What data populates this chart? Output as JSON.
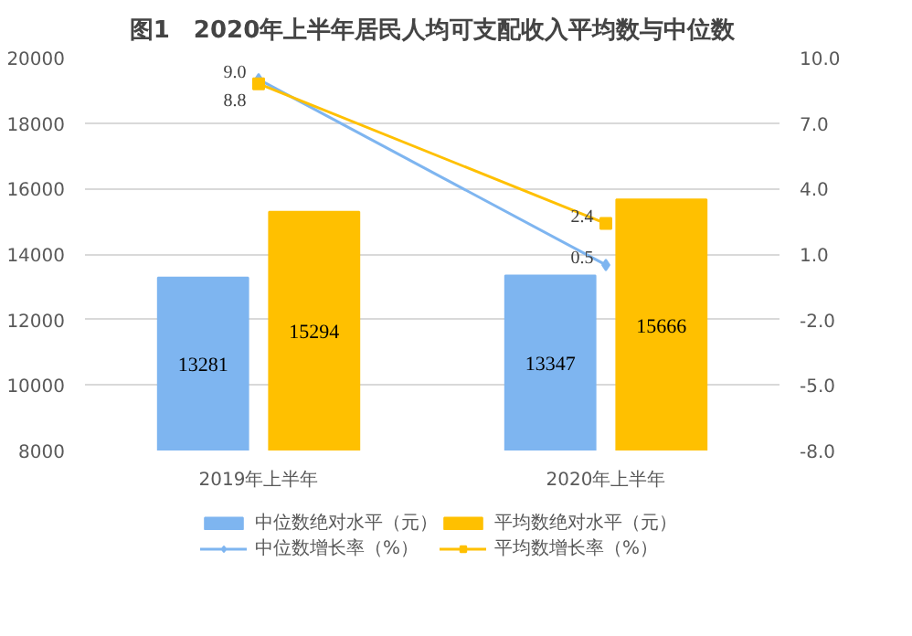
{
  "chart_data": {
    "type": "bar",
    "title": "图1　2020年上半年居民人均可支配收入平均数与中位数",
    "categories": [
      "2019年上半年",
      "2020年上半年"
    ],
    "series": [
      {
        "name": "中位数绝对水平（元）",
        "color": "#7eb5f0",
        "values": [
          13281,
          13347
        ]
      },
      {
        "name": "平均数绝对水平（元）",
        "color": "#ffc000",
        "values": [
          15294,
          15666
        ]
      },
      {
        "name": "中位数增长率（%）",
        "type": "line",
        "axis": "y2",
        "marker": "diamond",
        "color": "#7eb5f0",
        "values": [
          9.0,
          0.5
        ],
        "value_labels": [
          "9.0",
          "0.5"
        ]
      },
      {
        "name": "平均数增长率（%）",
        "type": "line",
        "axis": "y2",
        "marker": "square",
        "color": "#ffc000",
        "values": [
          8.8,
          2.4
        ],
        "value_labels": [
          "8.8",
          "2.4"
        ]
      }
    ],
    "ylim": [
      8000,
      20000
    ],
    "yticks": [
      8000,
      10000,
      12000,
      14000,
      16000,
      18000,
      20000
    ],
    "y2lim": [
      -8,
      10
    ],
    "y2ticks": [
      {
        "value": -8,
        "label": "-8.0"
      },
      {
        "value": -5,
        "label": "-5.0"
      },
      {
        "value": -2,
        "label": "-2.0"
      },
      {
        "value": 1,
        "label": "1.0"
      },
      {
        "value": 4,
        "label": "4.0"
      },
      {
        "value": 7,
        "label": "7.0"
      },
      {
        "value": 10,
        "label": "10.0"
      }
    ],
    "data_labels": true,
    "grid": "y",
    "legend": "bottom"
  }
}
